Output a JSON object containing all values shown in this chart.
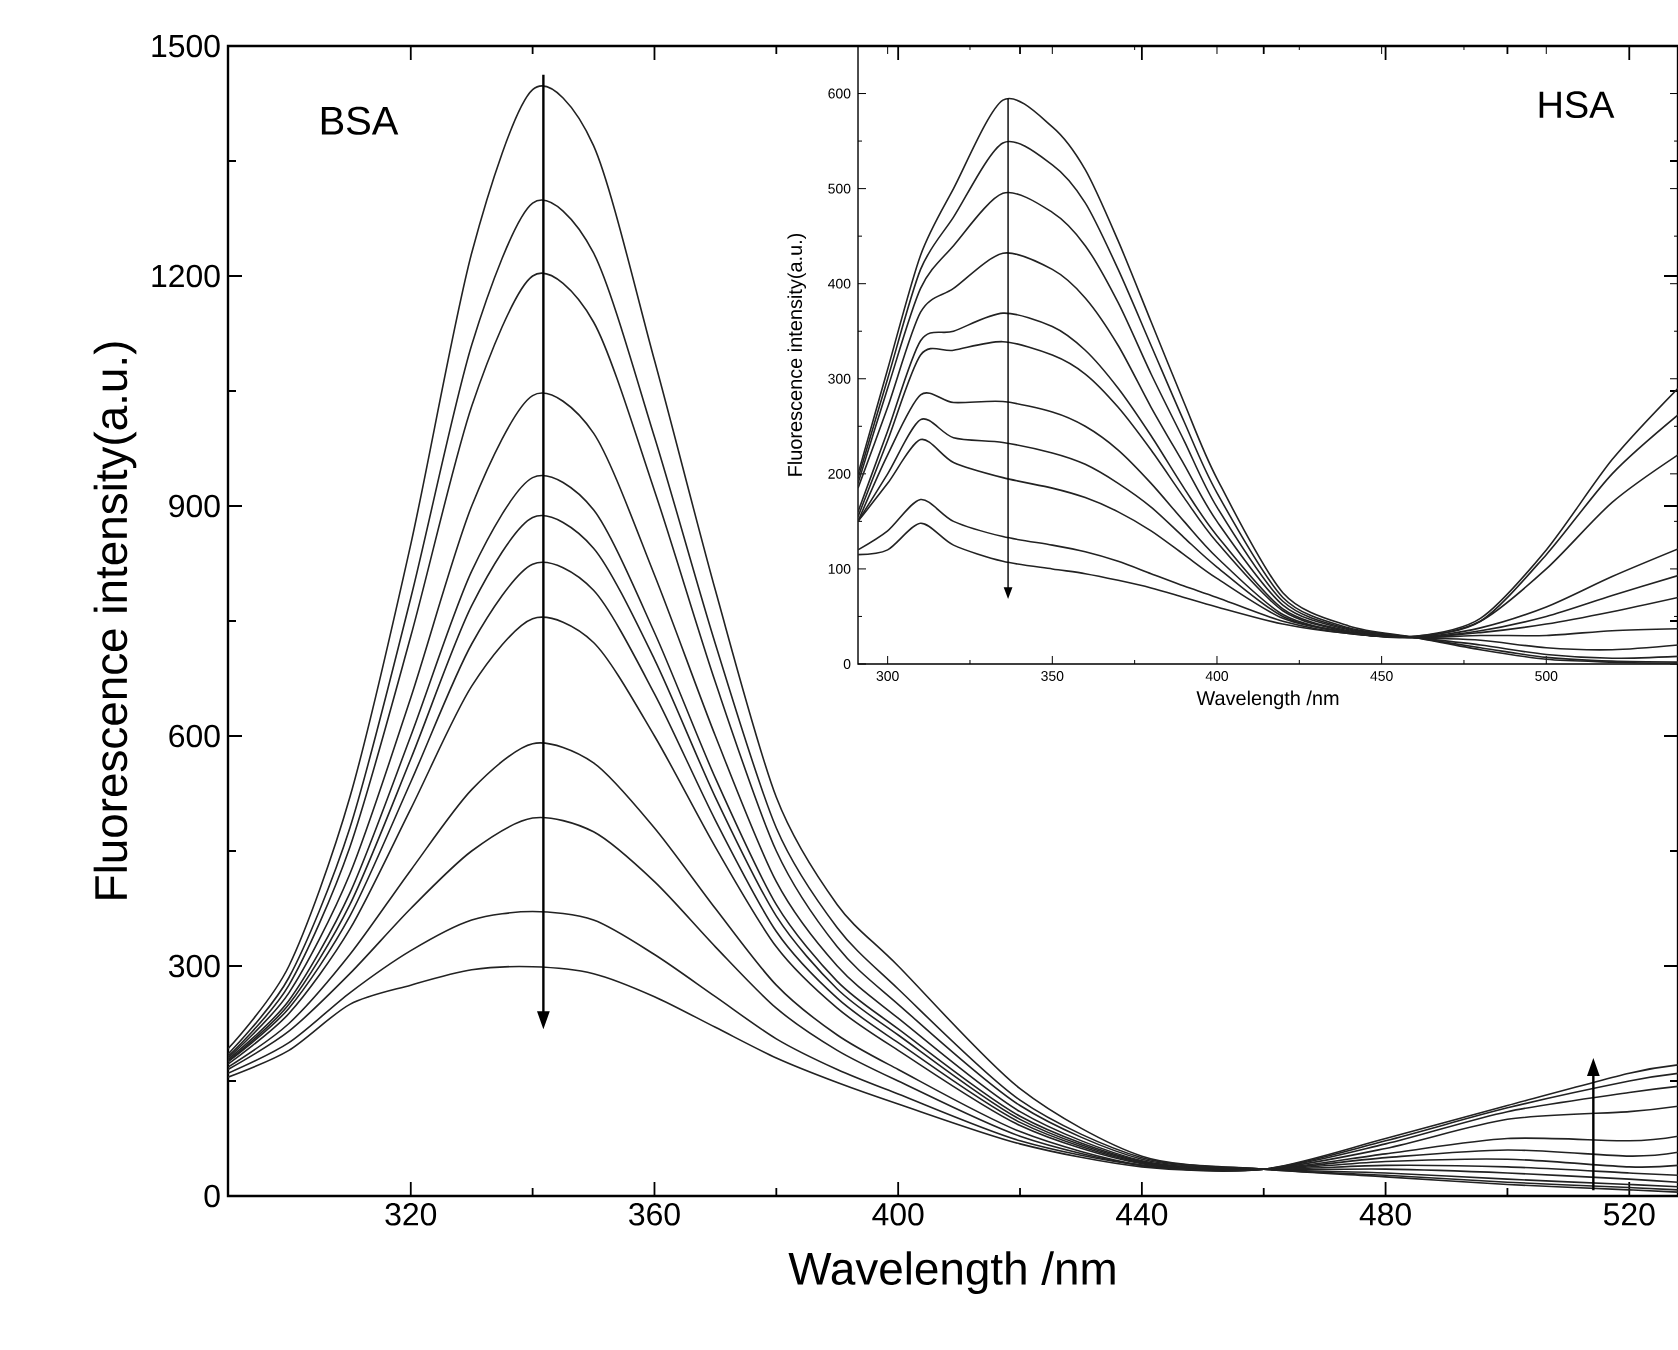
{
  "chart_data": [
    {
      "type": "line",
      "xlabel": "Wavelength /nm",
      "ylabel": "Fluorescence intensity(a.u.)",
      "annotations": [
        "BSA"
      ],
      "color": "#222222",
      "xlim": [
        290,
        528
      ],
      "ylim": [
        0,
        1500
      ],
      "xticks": [
        320,
        360,
        400,
        440,
        480,
        520
      ],
      "yticks": [
        0,
        300,
        600,
        900,
        1200,
        1500
      ],
      "x": [
        290,
        300,
        310,
        320,
        330,
        340,
        350,
        360,
        370,
        380,
        390,
        400,
        420,
        440,
        460,
        480,
        500,
        520,
        528
      ],
      "series": [
        {
          "values": [
            192,
            300,
            520,
            850,
            1230,
            1443,
            1370,
            1090,
            790,
            520,
            380,
            300,
            140,
            52,
            35,
            25,
            15,
            8,
            5
          ]
        },
        {
          "values": [
            185,
            285,
            480,
            780,
            1110,
            1295,
            1230,
            990,
            720,
            480,
            350,
            270,
            125,
            50,
            35,
            27,
            18,
            11,
            8
          ]
        },
        {
          "values": [
            182,
            275,
            455,
            730,
            1030,
            1200,
            1140,
            920,
            670,
            450,
            325,
            250,
            118,
            48,
            35,
            30,
            22,
            15,
            12
          ]
        },
        {
          "values": [
            180,
            265,
            420,
            650,
            900,
            1044,
            995,
            810,
            600,
            410,
            300,
            232,
            110,
            46,
            35,
            35,
            30,
            22,
            18
          ]
        },
        {
          "values": [
            178,
            255,
            395,
            600,
            815,
            937,
            895,
            735,
            545,
            380,
            280,
            218,
            104,
            45,
            35,
            40,
            38,
            30,
            27
          ]
        },
        {
          "values": [
            176,
            250,
            380,
            570,
            770,
            885,
            845,
            700,
            520,
            365,
            270,
            210,
            100,
            44,
            35,
            45,
            48,
            38,
            40
          ]
        },
        {
          "values": [
            175,
            245,
            365,
            540,
            720,
            824,
            790,
            655,
            490,
            345,
            258,
            200,
            96,
            43,
            35,
            50,
            60,
            52,
            57
          ]
        },
        {
          "values": [
            172,
            238,
            348,
            505,
            665,
            753,
            722,
            600,
            455,
            325,
            245,
            190,
            92,
            42,
            35,
            55,
            75,
            72,
            78
          ]
        },
        {
          "values": [
            168,
            225,
            315,
            425,
            530,
            590,
            565,
            480,
            375,
            275,
            210,
            165,
            84,
            40,
            35,
            62,
            100,
            110,
            117
          ]
        },
        {
          "values": [
            165,
            215,
            290,
            375,
            450,
            493,
            475,
            410,
            325,
            245,
            190,
            150,
            78,
            40,
            35,
            68,
            110,
            135,
            143
          ]
        },
        {
          "values": [
            160,
            200,
            265,
            320,
            360,
            371,
            360,
            315,
            260,
            205,
            165,
            133,
            72,
            40,
            35,
            72,
            115,
            150,
            160
          ]
        },
        {
          "values": [
            155,
            190,
            250,
            275,
            295,
            299,
            290,
            260,
            220,
            180,
            148,
            120,
            68,
            38,
            35,
            75,
            118,
            160,
            171
          ]
        }
      ]
    },
    {
      "type": "line",
      "xlabel": "Wavelength /nm",
      "ylabel": "Fluorescence intensity(a.u.)",
      "annotations": [
        "HSA"
      ],
      "color": "#222222",
      "xlim": [
        291,
        540
      ],
      "ylim": [
        0,
        650
      ],
      "xticks": [
        300,
        350,
        400,
        450,
        500
      ],
      "yticks": [
        0,
        100,
        200,
        300,
        400,
        500,
        600
      ],
      "x": [
        291,
        300,
        310,
        320,
        335,
        350,
        360,
        370,
        380,
        390,
        400,
        420,
        440,
        460,
        480,
        500,
        520,
        540
      ],
      "series": [
        {
          "values": [
            200,
            310,
            430,
            500,
            593,
            565,
            520,
            445,
            360,
            275,
            195,
            75,
            40,
            28,
            15,
            5,
            2,
            0
          ]
        },
        {
          "values": [
            195,
            300,
            415,
            470,
            548,
            525,
            485,
            415,
            335,
            255,
            180,
            70,
            38,
            28,
            17,
            7,
            3,
            2
          ]
        },
        {
          "values": [
            190,
            290,
            395,
            440,
            495,
            475,
            440,
            380,
            305,
            235,
            165,
            66,
            37,
            28,
            20,
            10,
            6,
            8
          ]
        },
        {
          "values": [
            185,
            270,
            370,
            395,
            432,
            415,
            385,
            335,
            270,
            210,
            150,
            62,
            36,
            28,
            25,
            17,
            15,
            20
          ]
        },
        {
          "values": [
            160,
            245,
            340,
            350,
            369,
            355,
            330,
            290,
            240,
            185,
            135,
            58,
            35,
            28,
            30,
            30,
            35,
            37
          ]
        },
        {
          "values": [
            155,
            235,
            325,
            330,
            339,
            325,
            305,
            270,
            225,
            175,
            128,
            56,
            34,
            28,
            33,
            42,
            55,
            70
          ]
        },
        {
          "values": [
            150,
            220,
            283,
            275,
            276,
            265,
            250,
            225,
            190,
            150,
            112,
            52,
            33,
            28,
            35,
            50,
            72,
            93
          ]
        },
        {
          "values": [
            150,
            200,
            257,
            238,
            233,
            222,
            210,
            190,
            165,
            133,
            102,
            50,
            33,
            28,
            38,
            60,
            92,
            121
          ]
        },
        {
          "values": [
            150,
            190,
            236,
            212,
            196,
            185,
            175,
            160,
            140,
            115,
            90,
            48,
            33,
            28,
            45,
            100,
            170,
            220
          ]
        },
        {
          "values": [
            120,
            140,
            173,
            150,
            134,
            125,
            118,
            108,
            95,
            82,
            70,
            45,
            32,
            29,
            45,
            115,
            200,
            262
          ]
        },
        {
          "values": [
            115,
            120,
            148,
            125,
            108,
            100,
            95,
            88,
            80,
            70,
            60,
            42,
            32,
            29,
            48,
            120,
            215,
            290
          ]
        }
      ]
    }
  ]
}
